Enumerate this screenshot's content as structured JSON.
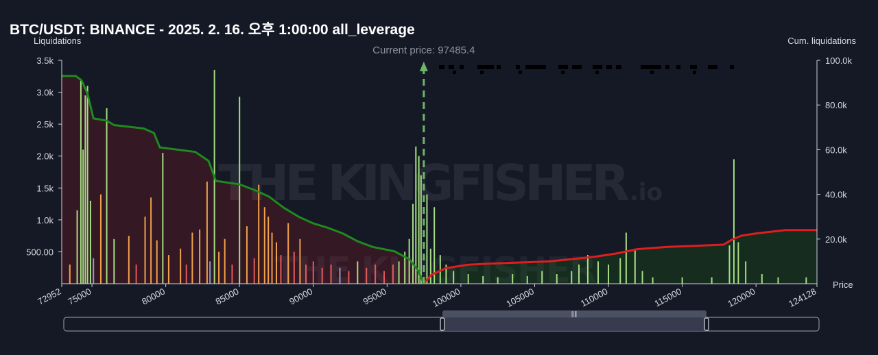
{
  "title": "BTC/USDT: BINANCE - 2025. 2. 16. 오후 1:00:00 all_leverage",
  "current_price_label": "Current price: 97485.4",
  "watermark": {
    "main": "THE KINGFISHER",
    "suffix": ".io"
  },
  "colors": {
    "background": "#151926",
    "long_cum_line": "#1f8a1f",
    "short_cum_line": "#e01e1e",
    "long_fill": "#3a1a26",
    "short_fill": "#15301f",
    "bar_green": "#a6dd82",
    "bar_orange": "#f0a14a",
    "bar_red": "#e05a5a",
    "bar_blue": "#8aa0c8",
    "current_price_line": "#6fb56a"
  },
  "chart_data": {
    "type": "bar",
    "ylabel_left": "Liquidations",
    "ylabel_right": "Cum. liquidations",
    "xlabel": "Price",
    "x_range": [
      72952,
      124128
    ],
    "x_ticks": [
      "72952",
      "75000",
      "80000",
      "85000",
      "90000",
      "95000",
      "100000",
      "105000",
      "110000",
      "115000",
      "120000",
      "124128"
    ],
    "y_left_range": [
      0,
      3500
    ],
    "y_left_ticks": [
      "500.00",
      "1.0k",
      "1.5k",
      "2.0k",
      "2.5k",
      "3.0k",
      "3.5k"
    ],
    "y_right_range": [
      0,
      100000
    ],
    "y_right_ticks": [
      "20.0k",
      "40.0k",
      "60.0k",
      "80.0k",
      "100.0k"
    ],
    "current_price": 97485.4,
    "series": [
      {
        "name": "Long cumulative liquidations",
        "points": [
          [
            72952,
            93000
          ],
          [
            73900,
            93000
          ],
          [
            74300,
            91000
          ],
          [
            74700,
            85000
          ],
          [
            75100,
            74000
          ],
          [
            76000,
            73000
          ],
          [
            76500,
            71000
          ],
          [
            78500,
            69500
          ],
          [
            79200,
            67500
          ],
          [
            79600,
            61000
          ],
          [
            82000,
            59000
          ],
          [
            82900,
            55000
          ],
          [
            83400,
            46000
          ],
          [
            85000,
            44500
          ],
          [
            86000,
            42000
          ],
          [
            87000,
            39000
          ],
          [
            88000,
            34000
          ],
          [
            89000,
            30000
          ],
          [
            90000,
            27000
          ],
          [
            91000,
            25000
          ],
          [
            92000,
            22500
          ],
          [
            93000,
            19000
          ],
          [
            94000,
            16500
          ],
          [
            95500,
            14500
          ],
          [
            96500,
            11000
          ],
          [
            97100,
            6000
          ],
          [
            97485,
            0
          ]
        ]
      },
      {
        "name": "Short cumulative liquidations",
        "points": [
          [
            97485,
            0
          ],
          [
            98000,
            4000
          ],
          [
            99000,
            7000
          ],
          [
            100500,
            8500
          ],
          [
            102000,
            9000
          ],
          [
            104000,
            9500
          ],
          [
            106000,
            10000
          ],
          [
            107500,
            11000
          ],
          [
            109000,
            12000
          ],
          [
            110500,
            13500
          ],
          [
            112000,
            15500
          ],
          [
            114000,
            16500
          ],
          [
            116000,
            17000
          ],
          [
            117800,
            17500
          ],
          [
            118300,
            19500
          ],
          [
            119000,
            21500
          ],
          [
            120000,
            22500
          ],
          [
            122000,
            24000
          ],
          [
            124128,
            24000
          ]
        ]
      }
    ],
    "bars": [
      {
        "price": 73500,
        "value": 300,
        "color": "orange"
      },
      {
        "price": 74000,
        "value": 1150,
        "color": "green"
      },
      {
        "price": 74250,
        "value": 3200,
        "color": "green"
      },
      {
        "price": 74400,
        "value": 2100,
        "color": "green"
      },
      {
        "price": 74550,
        "value": 2950,
        "color": "green"
      },
      {
        "price": 74700,
        "value": 3100,
        "color": "green"
      },
      {
        "price": 74900,
        "value": 1300,
        "color": "green"
      },
      {
        "price": 75100,
        "value": 400,
        "color": "blue"
      },
      {
        "price": 75600,
        "value": 1400,
        "color": "orange"
      },
      {
        "price": 76000,
        "value": 2750,
        "color": "green"
      },
      {
        "price": 76500,
        "value": 700,
        "color": "green"
      },
      {
        "price": 77500,
        "value": 750,
        "color": "orange"
      },
      {
        "price": 78000,
        "value": 300,
        "color": "red"
      },
      {
        "price": 78600,
        "value": 1050,
        "color": "orange"
      },
      {
        "price": 79000,
        "value": 1350,
        "color": "orange"
      },
      {
        "price": 79400,
        "value": 680,
        "color": "orange"
      },
      {
        "price": 79800,
        "value": 2050,
        "color": "green"
      },
      {
        "price": 80200,
        "value": 450,
        "color": "orange"
      },
      {
        "price": 81000,
        "value": 550,
        "color": "orange"
      },
      {
        "price": 81400,
        "value": 300,
        "color": "red"
      },
      {
        "price": 81800,
        "value": 800,
        "color": "orange"
      },
      {
        "price": 82300,
        "value": 850,
        "color": "orange"
      },
      {
        "price": 82800,
        "value": 1600,
        "color": "orange"
      },
      {
        "price": 83000,
        "value": 350,
        "color": "blue"
      },
      {
        "price": 83300,
        "value": 3350,
        "color": "green"
      },
      {
        "price": 83600,
        "value": 500,
        "color": "orange"
      },
      {
        "price": 84000,
        "value": 700,
        "color": "orange"
      },
      {
        "price": 84500,
        "value": 300,
        "color": "red"
      },
      {
        "price": 85000,
        "value": 2930,
        "color": "green"
      },
      {
        "price": 85500,
        "value": 900,
        "color": "orange"
      },
      {
        "price": 86000,
        "value": 400,
        "color": "red"
      },
      {
        "price": 86300,
        "value": 1550,
        "color": "orange"
      },
      {
        "price": 86700,
        "value": 1200,
        "color": "orange"
      },
      {
        "price": 86950,
        "value": 1050,
        "color": "orange"
      },
      {
        "price": 87200,
        "value": 800,
        "color": "orange"
      },
      {
        "price": 87500,
        "value": 650,
        "color": "orange"
      },
      {
        "price": 87800,
        "value": 450,
        "color": "red"
      },
      {
        "price": 88300,
        "value": 950,
        "color": "orange"
      },
      {
        "price": 88700,
        "value": 500,
        "color": "red"
      },
      {
        "price": 89100,
        "value": 700,
        "color": "orange"
      },
      {
        "price": 89500,
        "value": 300,
        "color": "red"
      },
      {
        "price": 90000,
        "value": 350,
        "color": "red"
      },
      {
        "price": 90600,
        "value": 250,
        "color": "red"
      },
      {
        "price": 91200,
        "value": 300,
        "color": "red"
      },
      {
        "price": 91800,
        "value": 250,
        "color": "blue"
      },
      {
        "price": 92400,
        "value": 200,
        "color": "red"
      },
      {
        "price": 93000,
        "value": 350,
        "color": "green"
      },
      {
        "price": 93600,
        "value": 250,
        "color": "red"
      },
      {
        "price": 94200,
        "value": 300,
        "color": "red"
      },
      {
        "price": 94800,
        "value": 200,
        "color": "red"
      },
      {
        "price": 95400,
        "value": 300,
        "color": "red"
      },
      {
        "price": 95800,
        "value": 350,
        "color": "green"
      },
      {
        "price": 96200,
        "value": 500,
        "color": "green"
      },
      {
        "price": 96500,
        "value": 700,
        "color": "green"
      },
      {
        "price": 96750,
        "value": 1250,
        "color": "green"
      },
      {
        "price": 96950,
        "value": 2150,
        "color": "green"
      },
      {
        "price": 97150,
        "value": 2000,
        "color": "green"
      },
      {
        "price": 97300,
        "value": 1700,
        "color": "green"
      },
      {
        "price": 97700,
        "value": 1400,
        "color": "green"
      },
      {
        "price": 97950,
        "value": 550,
        "color": "green"
      },
      {
        "price": 98200,
        "value": 1200,
        "color": "green"
      },
      {
        "price": 98600,
        "value": 450,
        "color": "green"
      },
      {
        "price": 99000,
        "value": 300,
        "color": "green"
      },
      {
        "price": 99500,
        "value": 200,
        "color": "green"
      },
      {
        "price": 100500,
        "value": 150,
        "color": "green"
      },
      {
        "price": 101500,
        "value": 120,
        "color": "green"
      },
      {
        "price": 102500,
        "value": 100,
        "color": "green"
      },
      {
        "price": 103500,
        "value": 150,
        "color": "green"
      },
      {
        "price": 104500,
        "value": 120,
        "color": "green"
      },
      {
        "price": 105500,
        "value": 200,
        "color": "green"
      },
      {
        "price": 106500,
        "value": 150,
        "color": "green"
      },
      {
        "price": 107500,
        "value": 200,
        "color": "green"
      },
      {
        "price": 108000,
        "value": 300,
        "color": "green"
      },
      {
        "price": 108600,
        "value": 450,
        "color": "green"
      },
      {
        "price": 109300,
        "value": 350,
        "color": "green"
      },
      {
        "price": 110000,
        "value": 300,
        "color": "green"
      },
      {
        "price": 110800,
        "value": 400,
        "color": "green"
      },
      {
        "price": 111200,
        "value": 800,
        "color": "green"
      },
      {
        "price": 111800,
        "value": 550,
        "color": "green"
      },
      {
        "price": 112300,
        "value": 200,
        "color": "green"
      },
      {
        "price": 113000,
        "value": 100,
        "color": "green"
      },
      {
        "price": 115000,
        "value": 100,
        "color": "green"
      },
      {
        "price": 117000,
        "value": 100,
        "color": "green"
      },
      {
        "price": 118200,
        "value": 600,
        "color": "green"
      },
      {
        "price": 118500,
        "value": 1950,
        "color": "green"
      },
      {
        "price": 118800,
        "value": 650,
        "color": "green"
      },
      {
        "price": 119300,
        "value": 350,
        "color": "green"
      },
      {
        "price": 120400,
        "value": 150,
        "color": "green"
      },
      {
        "price": 121500,
        "value": 100,
        "color": "green"
      },
      {
        "price": 123400,
        "value": 100,
        "color": "green"
      }
    ]
  }
}
